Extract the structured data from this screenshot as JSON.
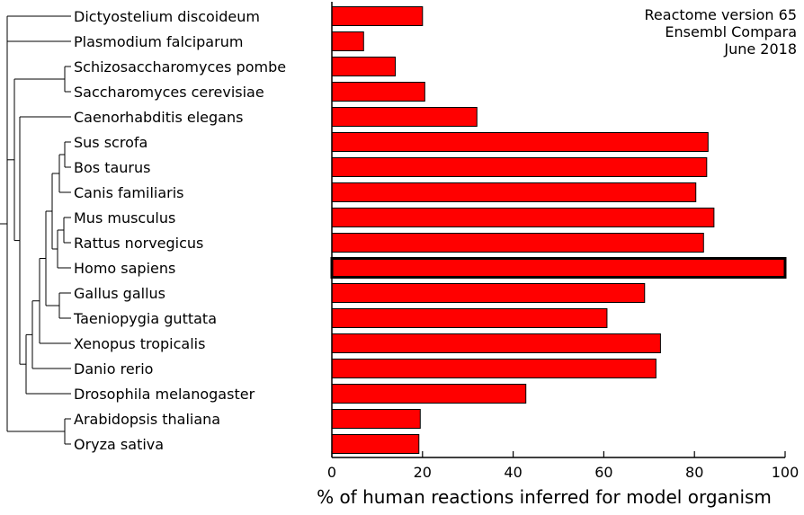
{
  "chart_data": {
    "type": "bar",
    "orientation": "horizontal",
    "xlabel": "% of human reactions inferred for model organism",
    "xlim": [
      0,
      100
    ],
    "xticks": [
      0,
      20,
      40,
      60,
      80,
      100
    ],
    "annotation": [
      "Reactome version 65",
      "Ensembl Compara",
      "June 2018"
    ],
    "categories": [
      "Dictyostelium discoideum",
      "Plasmodium falciparum",
      "Schizosaccharomyces pombe",
      "Saccharomyces cerevisiae",
      "Caenorhabditis elegans",
      "Sus scrofa",
      "Bos taurus",
      "Canis familiaris",
      "Mus musculus",
      "Rattus norvegicus",
      "Homo sapiens",
      "Gallus gallus",
      "Taeniopygia guttata",
      "Xenopus tropicalis",
      "Danio rerio",
      "Drosophila melanogaster",
      "Arabidopsis thaliana",
      "Oryza sativa"
    ],
    "values": [
      20,
      7,
      14,
      20.5,
      32,
      83,
      82.7,
      80.3,
      84.3,
      82,
      100,
      69,
      60.7,
      72.5,
      71.5,
      42.8,
      19.5,
      19.2
    ],
    "highlighted": "Homo sapiens",
    "bar_color": "#ff0000",
    "highlight_color": "#ff0000",
    "grid": false
  }
}
